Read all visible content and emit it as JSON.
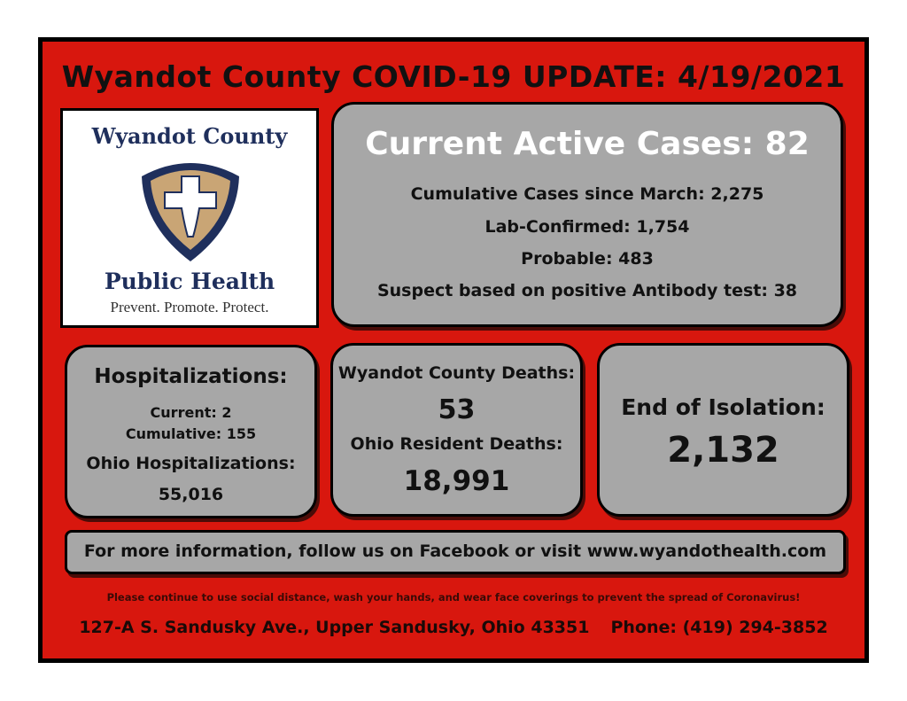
{
  "title": "Wyandot County COVID-19 UPDATE:  4/19/2021",
  "logo": {
    "line1": "Wyandot County",
    "line2": "Public Health",
    "tagline": "Prevent.  Promote.  Protect.",
    "colors": {
      "navy": "#1f2f5c",
      "tan": "#c9a575"
    }
  },
  "active": {
    "headline": "Current Active Cases:  82",
    "cumulative": "Cumulative Cases since March:  2,275",
    "lab_confirmed": "Lab-Confirmed:  1,754",
    "probable": "Probable:  483",
    "suspect": "Suspect based on positive Antibody test:  38"
  },
  "hospitalizations": {
    "heading": "Hospitalizations:",
    "current": "Current:  2",
    "cumulative": "Cumulative:  155",
    "ohio_label": "Ohio Hospitalizations:",
    "ohio_value": "55,016"
  },
  "deaths": {
    "county_label": "Wyandot County Deaths:",
    "county_value": "53",
    "ohio_label": "Ohio Resident Deaths:",
    "ohio_value": "18,991"
  },
  "isolation": {
    "label": "End of Isolation:",
    "value": "2,132"
  },
  "info_bar": "For more information, follow us on Facebook or visit www.wyandothealth.com",
  "reminder": "Please continue to use social distance, wash your hands, and wear face coverings to prevent the spread of Coronavirus!",
  "address": "127-A S. Sandusky Ave., Upper Sandusky, Ohio ",
  "zip": "43351",
  "phone": "Phone: (419) 294-3852",
  "colors": {
    "background": "#d8170e",
    "panel": "#a7a7a7",
    "border": "#000000"
  }
}
